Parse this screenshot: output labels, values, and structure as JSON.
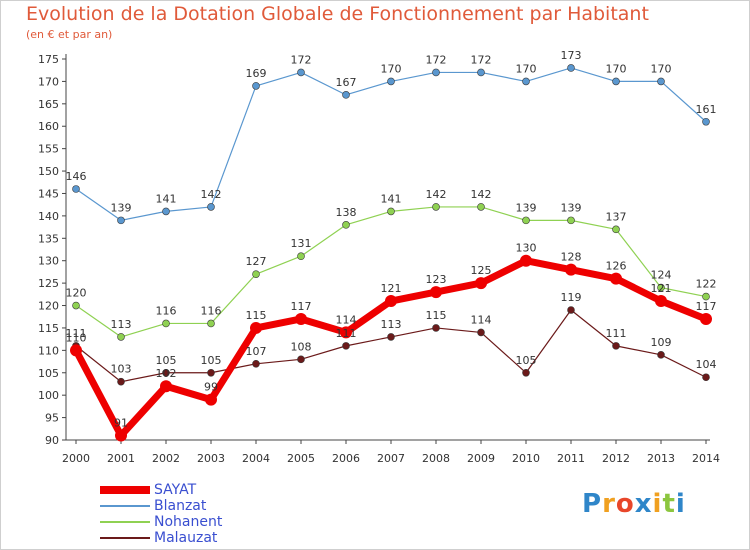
{
  "header": {
    "title": "Evolution de la Dotation Globale de Fonctionnement par Habitant",
    "subtitle": "(en € et par an)"
  },
  "brand": {
    "name": "Proxiti",
    "letters": [
      "P",
      "r",
      "o",
      "x",
      "i",
      "t",
      "i"
    ],
    "colors": [
      "#2f86c9",
      "#f0a020",
      "#e8462a",
      "#2f86c9",
      "#f0a020",
      "#8cc63f",
      "#2f86c9"
    ]
  },
  "chart_data": {
    "type": "line",
    "title": "Evolution de la Dotation Globale de Fonctionnement par Habitant",
    "subtitle": "(en € et par an)",
    "xlabel": "",
    "ylabel": "",
    "x": [
      "2000",
      "2001",
      "2002",
      "2003",
      "2004",
      "2005",
      "2006",
      "2007",
      "2008",
      "2009",
      "2010",
      "2011",
      "2012",
      "2013",
      "2014"
    ],
    "ylim": [
      90,
      175
    ],
    "yticks": [
      90,
      95,
      100,
      105,
      110,
      115,
      120,
      125,
      130,
      135,
      140,
      145,
      150,
      155,
      160,
      165,
      170,
      175
    ],
    "grid": false,
    "legend_position": "bottom-left",
    "series": [
      {
        "name": "Blanzat",
        "color": "#5a97cf",
        "values": [
          146,
          139,
          141,
          142,
          169,
          172,
          167,
          170,
          172,
          172,
          170,
          173,
          170,
          170,
          161
        ]
      },
      {
        "name": "Nohanent",
        "color": "#8fd152",
        "values": [
          120,
          113,
          116,
          116,
          127,
          131,
          138,
          141,
          142,
          142,
          139,
          139,
          137,
          124,
          122
        ]
      },
      {
        "name": "Malauzat",
        "color": "#6b1a1a",
        "values": [
          111,
          103,
          105,
          105,
          107,
          108,
          111,
          113,
          115,
          114,
          105,
          119,
          111,
          109,
          104
        ]
      },
      {
        "name": "SAYAT",
        "color": "#ee0000",
        "values": [
          110,
          91,
          102,
          99,
          115,
          117,
          114,
          121,
          123,
          125,
          130,
          128,
          126,
          121,
          117
        ]
      }
    ],
    "legend": [
      "SAYAT",
      "Blanzat",
      "Nohanent",
      "Malauzat"
    ]
  }
}
